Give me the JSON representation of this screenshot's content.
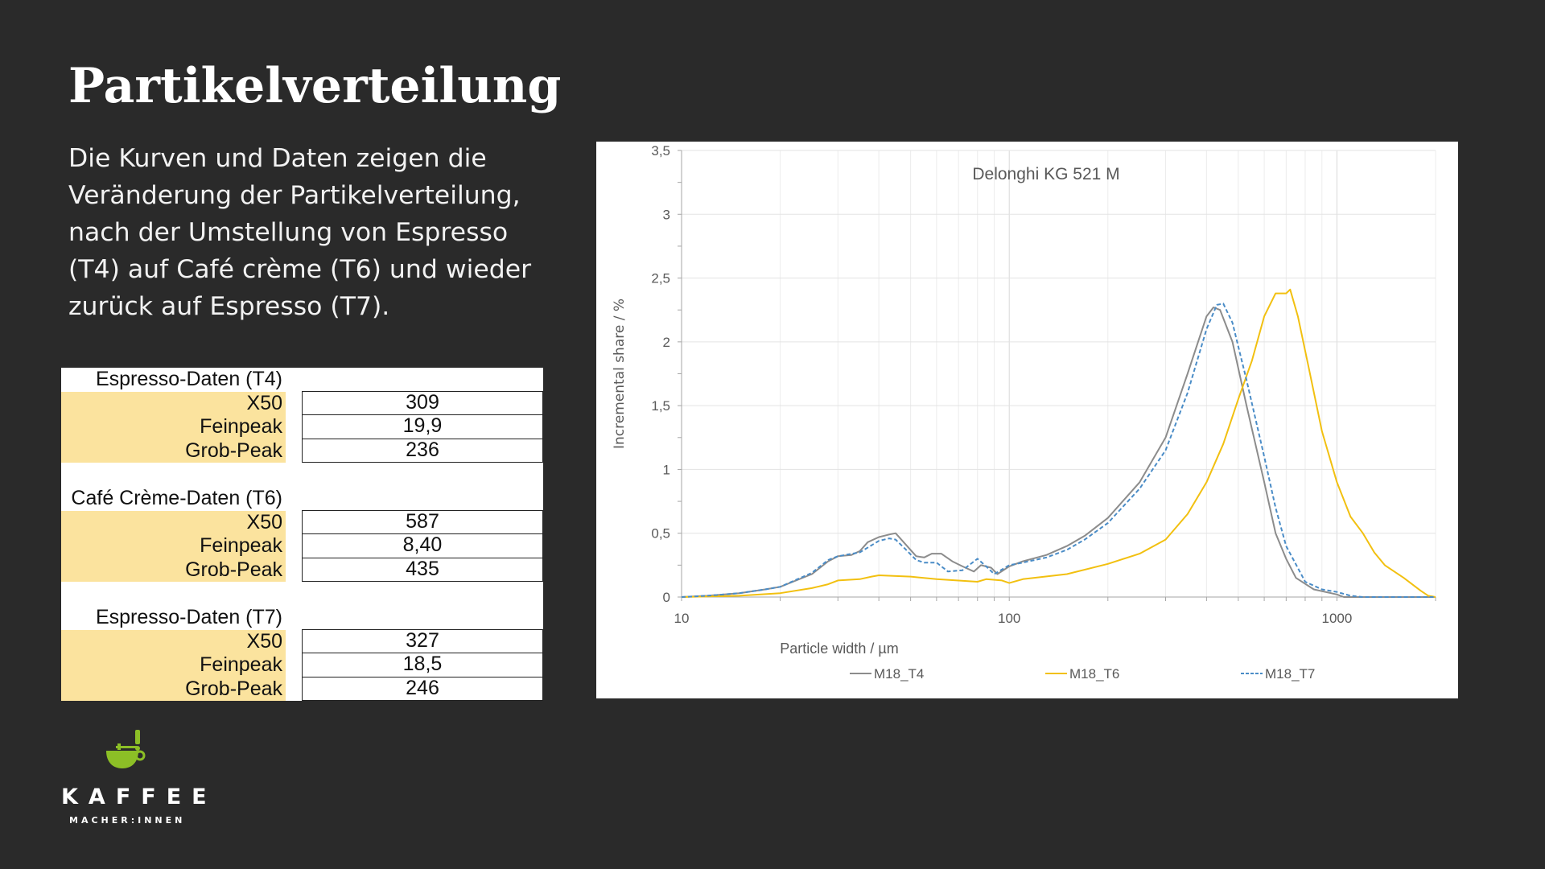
{
  "title": "Partikelverteilung",
  "intro": "Die Kurven und Daten zeigen die Veränderung der Partikelverteilung, nach der Umstellung von Espresso (T4) auf Café crème (T6) und wieder zurück auf Espresso (T7).",
  "tables": [
    {
      "heading": "Espresso-Daten (T4)",
      "rows": [
        {
          "label": "X50",
          "value": "309"
        },
        {
          "label": "Feinpeak",
          "value": "19,9"
        },
        {
          "label": "Grob-Peak",
          "value": "236"
        }
      ]
    },
    {
      "heading": "Café Crème-Daten (T6)",
      "rows": [
        {
          "label": "X50",
          "value": "587"
        },
        {
          "label": "Feinpeak",
          "value": "8,40"
        },
        {
          "label": "Grob-Peak",
          "value": "435"
        }
      ]
    },
    {
      "heading": "Espresso-Daten (T7)",
      "rows": [
        {
          "label": "X50",
          "value": "327"
        },
        {
          "label": "Feinpeak",
          "value": "18,5"
        },
        {
          "label": "Grob-Peak",
          "value": "246"
        }
      ]
    }
  ],
  "logo": {
    "brand": "KAFFEE",
    "sub": "MACHER:INNEN",
    "color": "#8cbf26"
  },
  "chart_data": {
    "type": "line",
    "title": "Delonghi KG 521 M",
    "xlabel": "Particle width / µm",
    "ylabel": "Incremental share / %",
    "xscale": "log",
    "xlim": [
      10,
      2000
    ],
    "ylim": [
      0,
      3.5
    ],
    "xticks": [
      {
        "v": 10,
        "label": "10"
      },
      {
        "v": 100,
        "label": "100"
      },
      {
        "v": 1000,
        "label": "1000"
      }
    ],
    "yticks": [
      {
        "v": 0,
        "label": "0"
      },
      {
        "v": 0.5,
        "label": "0,5"
      },
      {
        "v": 1,
        "label": "1"
      },
      {
        "v": 1.5,
        "label": "1,5"
      },
      {
        "v": 2,
        "label": "2"
      },
      {
        "v": 2.5,
        "label": "2,5"
      },
      {
        "v": 3,
        "label": "3"
      },
      {
        "v": 3.5,
        "label": "3,5"
      }
    ],
    "grid": true,
    "legend_position": "bottom",
    "series": [
      {
        "name": "M18_T4",
        "color": "#8c8c8c",
        "dash": "solid",
        "points": [
          [
            10,
            0
          ],
          [
            12,
            0.01
          ],
          [
            15,
            0.03
          ],
          [
            18,
            0.06
          ],
          [
            20,
            0.08
          ],
          [
            25,
            0.18
          ],
          [
            28,
            0.28
          ],
          [
            30,
            0.32
          ],
          [
            33,
            0.33
          ],
          [
            35,
            0.36
          ],
          [
            37,
            0.43
          ],
          [
            40,
            0.47
          ],
          [
            43,
            0.49
          ],
          [
            45,
            0.5
          ],
          [
            48,
            0.42
          ],
          [
            52,
            0.32
          ],
          [
            55,
            0.31
          ],
          [
            58,
            0.34
          ],
          [
            62,
            0.34
          ],
          [
            67,
            0.28
          ],
          [
            72,
            0.24
          ],
          [
            78,
            0.2
          ],
          [
            82,
            0.25
          ],
          [
            88,
            0.23
          ],
          [
            92,
            0.18
          ],
          [
            100,
            0.24
          ],
          [
            110,
            0.28
          ],
          [
            130,
            0.33
          ],
          [
            150,
            0.4
          ],
          [
            170,
            0.48
          ],
          [
            200,
            0.62
          ],
          [
            250,
            0.9
          ],
          [
            300,
            1.25
          ],
          [
            350,
            1.75
          ],
          [
            400,
            2.2
          ],
          [
            420,
            2.27
          ],
          [
            440,
            2.25
          ],
          [
            480,
            2.0
          ],
          [
            530,
            1.5
          ],
          [
            600,
            0.9
          ],
          [
            650,
            0.5
          ],
          [
            700,
            0.3
          ],
          [
            750,
            0.15
          ],
          [
            850,
            0.06
          ],
          [
            1000,
            0.02
          ],
          [
            1050,
            0
          ],
          [
            2000,
            0
          ]
        ]
      },
      {
        "name": "M18_T6",
        "color": "#f2c010",
        "dash": "solid",
        "points": [
          [
            10,
            0
          ],
          [
            15,
            0.01
          ],
          [
            20,
            0.03
          ],
          [
            25,
            0.07
          ],
          [
            28,
            0.1
          ],
          [
            30,
            0.13
          ],
          [
            35,
            0.14
          ],
          [
            38,
            0.16
          ],
          [
            40,
            0.17
          ],
          [
            50,
            0.16
          ],
          [
            60,
            0.14
          ],
          [
            80,
            0.12
          ],
          [
            85,
            0.14
          ],
          [
            95,
            0.13
          ],
          [
            100,
            0.11
          ],
          [
            110,
            0.14
          ],
          [
            150,
            0.18
          ],
          [
            200,
            0.26
          ],
          [
            250,
            0.34
          ],
          [
            300,
            0.45
          ],
          [
            350,
            0.65
          ],
          [
            400,
            0.9
          ],
          [
            450,
            1.2
          ],
          [
            500,
            1.55
          ],
          [
            550,
            1.85
          ],
          [
            600,
            2.2
          ],
          [
            650,
            2.38
          ],
          [
            700,
            2.38
          ],
          [
            720,
            2.41
          ],
          [
            760,
            2.2
          ],
          [
            820,
            1.8
          ],
          [
            900,
            1.3
          ],
          [
            1000,
            0.9
          ],
          [
            1100,
            0.63
          ],
          [
            1200,
            0.5
          ],
          [
            1300,
            0.35
          ],
          [
            1400,
            0.25
          ],
          [
            1600,
            0.15
          ],
          [
            1800,
            0.05
          ],
          [
            1900,
            0.01
          ],
          [
            2000,
            0
          ]
        ]
      },
      {
        "name": "M18_T7",
        "color": "#4a8cc7",
        "dash": "dashed",
        "points": [
          [
            10,
            0
          ],
          [
            12,
            0.01
          ],
          [
            15,
            0.03
          ],
          [
            18,
            0.06
          ],
          [
            20,
            0.08
          ],
          [
            25,
            0.19
          ],
          [
            28,
            0.29
          ],
          [
            30,
            0.32
          ],
          [
            35,
            0.35
          ],
          [
            40,
            0.44
          ],
          [
            43,
            0.46
          ],
          [
            45,
            0.45
          ],
          [
            48,
            0.38
          ],
          [
            52,
            0.29
          ],
          [
            55,
            0.27
          ],
          [
            60,
            0.27
          ],
          [
            65,
            0.2
          ],
          [
            72,
            0.21
          ],
          [
            80,
            0.3
          ],
          [
            85,
            0.24
          ],
          [
            90,
            0.18
          ],
          [
            100,
            0.25
          ],
          [
            110,
            0.27
          ],
          [
            130,
            0.31
          ],
          [
            150,
            0.37
          ],
          [
            170,
            0.45
          ],
          [
            200,
            0.58
          ],
          [
            250,
            0.85
          ],
          [
            300,
            1.15
          ],
          [
            350,
            1.6
          ],
          [
            400,
            2.1
          ],
          [
            430,
            2.29
          ],
          [
            450,
            2.3
          ],
          [
            480,
            2.15
          ],
          [
            530,
            1.7
          ],
          [
            600,
            1.1
          ],
          [
            650,
            0.7
          ],
          [
            700,
            0.4
          ],
          [
            800,
            0.12
          ],
          [
            900,
            0.06
          ],
          [
            1000,
            0.04
          ],
          [
            1100,
            0.01
          ],
          [
            1200,
            0
          ],
          [
            2000,
            0
          ]
        ]
      }
    ]
  }
}
